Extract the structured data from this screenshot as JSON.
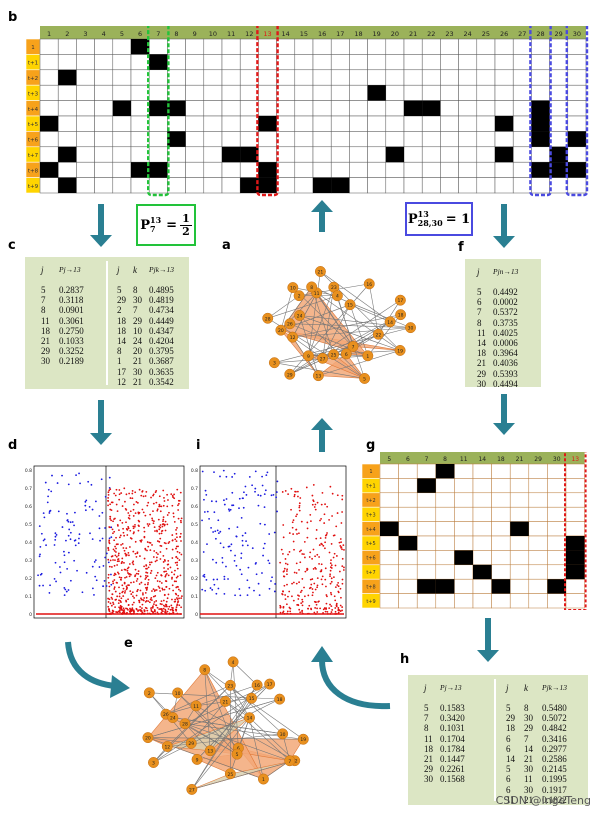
{
  "panels": {
    "a": "a",
    "b": "b",
    "c": "c",
    "d": "d",
    "e": "e",
    "f": "f",
    "g": "g",
    "h": "h",
    "i": "i"
  },
  "grid_b": {
    "cols": [
      "1",
      "2",
      "3",
      "4",
      "5",
      "6",
      "7",
      "8",
      "9",
      "10",
      "11",
      "12",
      "13",
      "14",
      "15",
      "16",
      "17",
      "18",
      "19",
      "20",
      "21",
      "22",
      "23",
      "24",
      "25",
      "26",
      "27",
      "28",
      "29",
      "30"
    ],
    "rows": [
      "1",
      "t+1",
      "t+2",
      "t+3",
      "t+4",
      "t+5",
      "t+6",
      "t+7",
      "t+8",
      "t+9"
    ],
    "filled": [
      [
        7,
        1
      ],
      [
        6,
        0
      ],
      [
        6,
        8
      ],
      [
        7,
        4
      ],
      [
        8,
        4
      ],
      [
        7,
        8
      ],
      [
        2,
        2
      ],
      [
        19,
        3
      ],
      [
        5,
        4
      ],
      [
        21,
        4
      ],
      [
        22,
        4
      ],
      [
        28,
        4
      ],
      [
        1,
        5
      ],
      [
        13,
        5
      ],
      [
        26,
        5
      ],
      [
        28,
        5
      ],
      [
        8,
        6
      ],
      [
        28,
        6
      ],
      [
        30,
        6
      ],
      [
        2,
        7
      ],
      [
        11,
        7
      ],
      [
        12,
        7
      ],
      [
        20,
        7
      ],
      [
        26,
        7
      ],
      [
        29,
        7
      ],
      [
        1,
        8
      ],
      [
        7,
        8
      ],
      [
        13,
        8
      ],
      [
        28,
        8
      ],
      [
        29,
        8
      ],
      [
        30,
        8
      ],
      [
        2,
        9
      ],
      [
        12,
        9
      ],
      [
        13,
        9
      ],
      [
        16,
        9
      ],
      [
        17,
        9
      ]
    ]
  },
  "formula_left": {
    "prefix": "P",
    "sup": "13",
    "sub": "7",
    "eq": "=",
    "num": "1",
    "den": "2"
  },
  "formula_right": {
    "prefix": "P",
    "sup": "13",
    "sub": "28,30",
    "eq": "= 1"
  },
  "table_c": {
    "left_header": [
      "j",
      "Pj→13"
    ],
    "left_rows": [
      [
        "5",
        "0.2837"
      ],
      [
        "7",
        "0.3118"
      ],
      [
        "8",
        "0.0901"
      ],
      [
        "11",
        "0.3061"
      ],
      [
        "18",
        "0.2750"
      ],
      [
        "21",
        "0.1033"
      ],
      [
        "29",
        "0.3252"
      ],
      [
        "30",
        "0.2189"
      ]
    ],
    "right_header": [
      "j",
      "k",
      "Pjk→13"
    ],
    "right_rows": [
      [
        "5",
        "8",
        "0.4895"
      ],
      [
        "29",
        "30",
        "0.4819"
      ],
      [
        "2",
        "7",
        "0.4734"
      ],
      [
        "18",
        "29",
        "0.4449"
      ],
      [
        "18",
        "10",
        "0.4347"
      ],
      [
        "14",
        "24",
        "0.4204"
      ],
      [
        "8",
        "20",
        "0.3795"
      ],
      [
        "1",
        "21",
        "0.3687"
      ],
      [
        "17",
        "30",
        "0.3635"
      ],
      [
        "12",
        "21",
        "0.3542"
      ]
    ]
  },
  "table_f": {
    "header": [
      "j",
      "Pjn→13"
    ],
    "rows": [
      [
        "5",
        "0.4492"
      ],
      [
        "6",
        "0.0002"
      ],
      [
        "7",
        "0.5372"
      ],
      [
        "8",
        "0.3735"
      ],
      [
        "11",
        "0.4025"
      ],
      [
        "14",
        "0.0006"
      ],
      [
        "18",
        "0.3964"
      ],
      [
        "21",
        "0.4036"
      ],
      [
        "29",
        "0.5393"
      ],
      [
        "30",
        "0.4494"
      ]
    ]
  },
  "grid_g": {
    "cols": [
      "5",
      "6",
      "7",
      "8",
      "11",
      "14",
      "18",
      "21",
      "29",
      "30",
      "13"
    ],
    "rows": [
      "1",
      "t+1",
      "t+2",
      "t+3",
      "t+4",
      "t+5",
      "t+6",
      "t+7",
      "t+8",
      "t+9"
    ],
    "filled": [
      [
        3,
        0
      ],
      [
        2,
        1
      ],
      [
        0,
        4
      ],
      [
        7,
        4
      ],
      [
        1,
        5
      ],
      [
        10,
        5
      ],
      [
        4,
        6
      ],
      [
        10,
        6
      ],
      [
        5,
        7
      ],
      [
        2,
        8
      ],
      [
        3,
        8
      ],
      [
        6,
        8
      ],
      [
        9,
        8
      ],
      [
        10,
        7
      ]
    ]
  },
  "table_h": {
    "left_header": [
      "j",
      "Pj→13"
    ],
    "left_rows": [
      [
        "5",
        "0.1583"
      ],
      [
        "7",
        "0.3420"
      ],
      [
        "8",
        "0.1031"
      ],
      [
        "11",
        "0.1704"
      ],
      [
        "18",
        "0.1784"
      ],
      [
        "21",
        "0.1447"
      ],
      [
        "29",
        "0.2261"
      ],
      [
        "30",
        "0.1568"
      ]
    ],
    "right_header": [
      "j",
      "k",
      "Pjk→13"
    ],
    "right_rows": [
      [
        "5",
        "8",
        "0.5480"
      ],
      [
        "29",
        "30",
        "0.5072"
      ],
      [
        "18",
        "29",
        "0.4842"
      ],
      [
        "6",
        "7",
        "0.3416"
      ],
      [
        "6",
        "14",
        "0.2977"
      ],
      [
        "14",
        "21",
        "0.2586"
      ],
      [
        "5",
        "30",
        "0.2145"
      ],
      [
        "6",
        "11",
        "0.1995"
      ],
      [
        "6",
        "30",
        "0.1917"
      ],
      [
        "11",
        "21",
        "0.1822"
      ]
    ]
  },
  "scatter_axis_ticks": [
    "0.8",
    "0.7",
    "0.6",
    "0.5",
    "0.4",
    "0.3",
    "0.2",
    "0.1",
    "0"
  ],
  "network_nodes": [
    "19",
    "22",
    "7",
    "1",
    "6",
    "5",
    "25",
    "27",
    "13",
    "9",
    "29",
    "3",
    "12",
    "20",
    "28",
    "26",
    "24",
    "2",
    "10",
    "11",
    "8",
    "21",
    "23",
    "4",
    "15",
    "16",
    "17",
    "18",
    "14",
    "30"
  ],
  "colors": {
    "header_green": "#9bb25a",
    "row_yellow": "#ffd400",
    "row_orange": "#f7a21b",
    "green_box": "#dce6c4",
    "arrow": "#2a7f92",
    "node": "#e8901e",
    "triangle": "#f2a878",
    "highlight_green": "#22c33a",
    "highlight_red": "#e01818",
    "highlight_blue": "#4a4ae0"
  },
  "watermark": "CSDN @IngeTeng"
}
